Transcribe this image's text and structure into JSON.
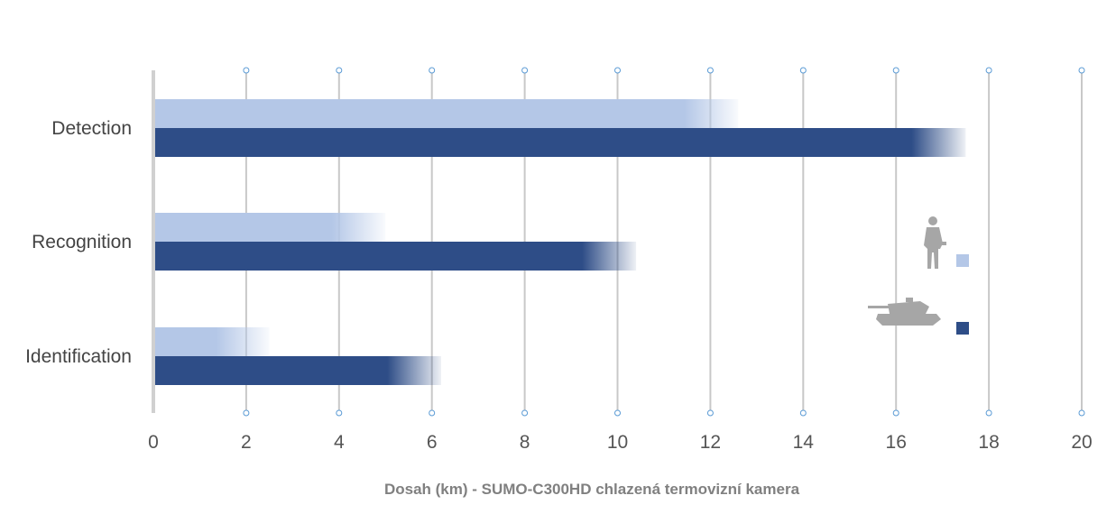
{
  "chart_data": {
    "type": "bar",
    "orientation": "horizontal",
    "title": "",
    "xlabel": "Dosah (km) - SUMO-C300HD chlazená termovizní kamera",
    "ylabel": "",
    "xlim": [
      0,
      20
    ],
    "xticks": [
      0,
      2,
      4,
      6,
      8,
      10,
      12,
      14,
      16,
      18,
      20
    ],
    "grid": true,
    "legend_position": "right",
    "categories": [
      "Detection",
      "Recognition",
      "Identification"
    ],
    "series": [
      {
        "legend_icon": "soldier-silhouette-icon",
        "color": "#b4c7e7",
        "values": [
          12.6,
          5.0,
          2.5
        ]
      },
      {
        "legend_icon": "tank-silhouette-icon",
        "color": "#2e4d87",
        "values": [
          17.5,
          10.4,
          6.2
        ]
      }
    ]
  }
}
